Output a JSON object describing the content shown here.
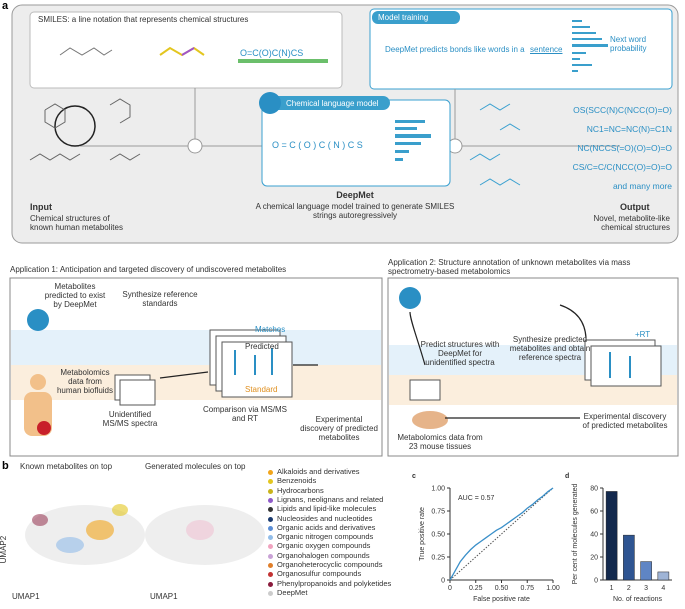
{
  "panel_a": {
    "label": "a",
    "smiles_box": {
      "title": "SMILES: a line notation that represents chemical structures",
      "smiles": "O=C(O)C(N)CS"
    },
    "training": {
      "title": "Model training",
      "text": "DeepMet predicts bonds like words in a",
      "word": "sentence",
      "probability": "Next word probability"
    },
    "model": {
      "title": "Chemical language model",
      "tokens": "O = C ( O ) C ( N ) C S",
      "name": "DeepMet",
      "description": "A chemical language model trained to generate SMILES strings autoregressively"
    },
    "input": {
      "title": "Input",
      "text": "Chemical structures of known human metabolites"
    },
    "output": {
      "title": "Output",
      "text": "Novel, metabolite-like chemical structures",
      "smiles": [
        "OS(SCC(N)C(NCC(O)=O)",
        "NC1=NC=NC(N)=C1N",
        "NC(NCCS(=O)(O)=O)=O",
        "CS/C=C/C(NCC(O)=O)=O",
        "and many more"
      ]
    }
  },
  "application_1": {
    "title": "Application 1: Anticipation and targeted discovery of undiscovered metabolites",
    "predicted": "Metabolites predicted to exist by DeepMet",
    "synthesize": "Synthesize reference standards",
    "matches": "Matches",
    "predicted_label": "Predicted",
    "standard_label": "Standard",
    "biofluids": "Metabolomics data from human biofluids",
    "spectra": "Unidentified MS/MS spectra",
    "comparison": "Comparison via MS/MS and RT",
    "discovery": "Experimental discovery of predicted metabolites"
  },
  "application_2": {
    "title": "Application 2: Structure annotation of unknown metabolites via mass spectrometry-based metabolomics",
    "predict": "Predict structures with DeepMet for unidentified spectra",
    "synthesize": "Synthesize predicted metabolites and obtain reference spectra",
    "rt": "+RT",
    "tissues": "Metabolomics data from 23 mouse tissues",
    "discovery": "Experimental discovery of predicted metabolites"
  },
  "panel_b": {
    "label": "b",
    "left_title": "Known metabolites on top",
    "right_title": "Generated molecules on top",
    "ylabel": "UMAP2",
    "xlabel_left": "UMAP1",
    "xlabel_right": "UMAP1",
    "legend": [
      {
        "name": "Alkaloids and derivatives",
        "color": "#f2a51a"
      },
      {
        "name": "Benzenoids",
        "color": "#e3c61f"
      },
      {
        "name": "Hydrocarbons",
        "color": "#c9b31a"
      },
      {
        "name": "Lignans, neolignans and related",
        "color": "#8f5bc9"
      },
      {
        "name": "Lipids and lipid-like molecules",
        "color": "#333333"
      },
      {
        "name": "Nucleosides and nucleotides",
        "color": "#1b3a6e"
      },
      {
        "name": "Organic acids and derivatives",
        "color": "#5b8ed6"
      },
      {
        "name": "Organic nitrogen compounds",
        "color": "#92bde9"
      },
      {
        "name": "Organic oxygen compounds",
        "color": "#f0a3bf"
      },
      {
        "name": "Organohalogen compounds",
        "color": "#c9a2d6"
      },
      {
        "name": "Organoheterocyclic compounds",
        "color": "#e07f2a"
      },
      {
        "name": "Organosulfur compounds",
        "color": "#c33333"
      },
      {
        "name": "Phenylpropanoids and polyketides",
        "color": "#8a1b3c"
      },
      {
        "name": "DeepMet",
        "color": "#cccccc"
      }
    ]
  },
  "chart_data": [
    {
      "type": "line",
      "label": "c",
      "annotation": "AUC = 0.57",
      "xlabel": "False positive rate",
      "ylabel": "True positive rate",
      "x": [
        0,
        0.05,
        0.1,
        0.15,
        0.2,
        0.25,
        0.3,
        0.35,
        0.4,
        0.45,
        0.5,
        0.55,
        0.6,
        0.65,
        0.7,
        0.75,
        0.8,
        0.85,
        0.9,
        0.95,
        1
      ],
      "series": [
        {
          "color": "#3a8fc9",
          "values": [
            0,
            0.1,
            0.2,
            0.27,
            0.33,
            0.38,
            0.42,
            0.46,
            0.5,
            0.54,
            0.57,
            0.61,
            0.65,
            0.69,
            0.73,
            0.78,
            0.82,
            0.87,
            0.91,
            0.96,
            1
          ]
        }
      ],
      "xlim": [
        0,
        1
      ],
      "ylim": [
        0,
        1
      ],
      "xticks": [
        0,
        0.25,
        {
          "value": 0.5,
          "label": "0.50"
        },
        0.75,
        {
          "value": 1,
          "label": "1.00"
        }
      ],
      "yticks": [
        0,
        0.25,
        {
          "value": 0.5,
          "label": "0.50"
        },
        0.75,
        {
          "value": 1,
          "label": "1.00"
        }
      ]
    },
    {
      "type": "bar",
      "label": "d",
      "xlabel": "No. of reactions",
      "ylabel": "Per cent of molecules generated",
      "categories": [
        "1",
        "2",
        "3",
        "4"
      ],
      "values": [
        77,
        39,
        16,
        7
      ],
      "colors": [
        "#13294d",
        "#2f5592",
        "#5f85c4",
        "#9fb4d6"
      ],
      "ylim": [
        0,
        80
      ],
      "yticks": [
        0,
        20,
        40,
        60,
        80
      ]
    }
  ]
}
